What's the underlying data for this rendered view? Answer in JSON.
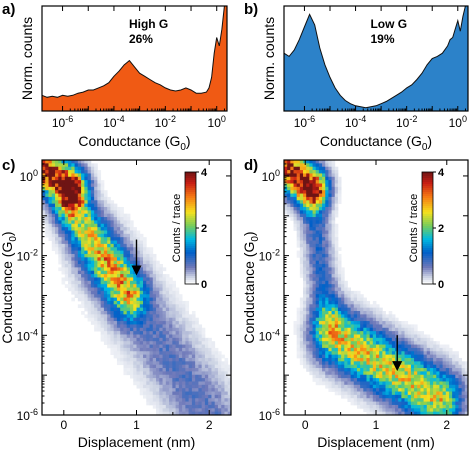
{
  "chart_data": [
    {
      "panel_label": "a)",
      "type": "area",
      "annotation_title": "High G",
      "annotation_value": "26%",
      "ylabel": "Norm. counts",
      "xlabel_main": "Conductance (G",
      "xlabel_sub": "0",
      "xlabel_end": ")",
      "xscale": "log",
      "xlim": [
        -6.8,
        0.4
      ],
      "ylim": [
        0,
        1
      ],
      "x_tick_labels": [
        {
          "base": "10",
          "exp": "-6",
          "value": -6
        },
        {
          "base": "10",
          "exp": "-4",
          "value": -4
        },
        {
          "base": "10",
          "exp": "-2",
          "value": -2
        },
        {
          "base": "10",
          "exp": "0",
          "value": 0
        }
      ],
      "fill_color": "#f05a14",
      "x": [
        -6.8,
        -6.6,
        -6.4,
        -6.2,
        -6.0,
        -5.8,
        -5.6,
        -5.4,
        -5.2,
        -5.0,
        -4.8,
        -4.6,
        -4.4,
        -4.2,
        -4.0,
        -3.8,
        -3.6,
        -3.4,
        -3.2,
        -3.0,
        -2.8,
        -2.6,
        -2.4,
        -2.2,
        -2.0,
        -1.8,
        -1.6,
        -1.4,
        -1.2,
        -1.0,
        -0.8,
        -0.6,
        -0.4,
        -0.3,
        -0.2,
        -0.1,
        0.0,
        0.1,
        0.2,
        0.3,
        0.4
      ],
      "y": [
        0.15,
        0.13,
        0.14,
        0.13,
        0.15,
        0.14,
        0.15,
        0.17,
        0.18,
        0.2,
        0.2,
        0.22,
        0.24,
        0.27,
        0.33,
        0.38,
        0.44,
        0.48,
        0.42,
        0.36,
        0.33,
        0.3,
        0.27,
        0.25,
        0.22,
        0.2,
        0.19,
        0.2,
        0.22,
        0.2,
        0.17,
        0.17,
        0.18,
        0.22,
        0.32,
        0.55,
        0.7,
        0.62,
        0.78,
        1.0,
        1.0
      ]
    },
    {
      "panel_label": "b)",
      "type": "area",
      "annotation_title": "Low G",
      "annotation_value": "19%",
      "ylabel": "Norm. counts",
      "xlabel_main": "Conductance (G",
      "xlabel_sub": "0",
      "xlabel_end": ")",
      "xscale": "log",
      "xlim": [
        -6.8,
        0.4
      ],
      "ylim": [
        0,
        1
      ],
      "x_tick_labels": [
        {
          "base": "10",
          "exp": "-6",
          "value": -6
        },
        {
          "base": "10",
          "exp": "-4",
          "value": -4
        },
        {
          "base": "10",
          "exp": "-2",
          "value": -2
        },
        {
          "base": "10",
          "exp": "0",
          "value": 0
        }
      ],
      "fill_color": "#2c82c9",
      "x": [
        -6.8,
        -6.6,
        -6.4,
        -6.2,
        -6.0,
        -5.8,
        -5.6,
        -5.4,
        -5.2,
        -5.0,
        -4.8,
        -4.6,
        -4.4,
        -4.2,
        -4.0,
        -3.8,
        -3.6,
        -3.4,
        -3.2,
        -3.0,
        -2.8,
        -2.6,
        -2.4,
        -2.2,
        -2.0,
        -1.8,
        -1.6,
        -1.4,
        -1.2,
        -1.0,
        -0.8,
        -0.6,
        -0.4,
        -0.3,
        -0.2,
        -0.1,
        0.0,
        0.1,
        0.2,
        0.3,
        0.4
      ],
      "y": [
        0.55,
        0.52,
        0.58,
        0.68,
        0.8,
        0.92,
        0.82,
        0.6,
        0.44,
        0.32,
        0.22,
        0.15,
        0.1,
        0.07,
        0.05,
        0.04,
        0.03,
        0.04,
        0.05,
        0.07,
        0.09,
        0.12,
        0.15,
        0.18,
        0.22,
        0.25,
        0.3,
        0.36,
        0.44,
        0.5,
        0.52,
        0.55,
        0.62,
        0.68,
        0.7,
        0.78,
        0.86,
        0.76,
        0.9,
        1.0,
        1.0
      ]
    },
    {
      "panel_label": "c)",
      "type": "heatmap",
      "ylabel_main": "Conductance (G",
      "ylabel_sub": "0",
      "ylabel_end": ")",
      "xlabel": "Displacement (nm)",
      "xlim": [
        -0.3,
        2.3
      ],
      "ylim_log": [
        -6,
        0.4
      ],
      "x_ticks": [
        0,
        1,
        2
      ],
      "x_tick_labels": [
        "0",
        "1",
        "2"
      ],
      "y_tick_labels": [
        {
          "base": "10",
          "exp": "0",
          "value": 0
        },
        {
          "base": "10",
          "exp": "-2",
          "value": -2
        },
        {
          "base": "10",
          "exp": "-4",
          "value": -4
        },
        {
          "base": "10",
          "exp": "-6",
          "value": -6
        }
      ],
      "colorbar_label": "Counts / trace",
      "colorbar_ticks": [
        "4",
        "2",
        "0"
      ],
      "colorbar_range": [
        0,
        4
      ],
      "arrow_at": {
        "x": 1.0,
        "y_log": -2.5
      },
      "bands": [
        {
          "x0": -0.3,
          "y0": 0.2,
          "x1": 0.1,
          "y1": -0.3,
          "width": 0.5,
          "peak": 4.0
        },
        {
          "x0": 0.1,
          "y0": -0.8,
          "x1": 0.9,
          "y1": -3.0,
          "width": 0.55,
          "peak": 2.2
        },
        {
          "x0": 0.5,
          "y0": -2.0,
          "x1": 2.0,
          "y1": -6.0,
          "width": 0.9,
          "peak": 0.7
        }
      ]
    },
    {
      "panel_label": "d)",
      "type": "heatmap",
      "ylabel_main": "Conductance (G",
      "ylabel_sub": "0",
      "ylabel_end": ")",
      "xlabel": "Displacement (nm)",
      "xlim": [
        -0.3,
        2.3
      ],
      "ylim_log": [
        -6,
        0.4
      ],
      "x_ticks": [
        0,
        1,
        2
      ],
      "x_tick_labels": [
        "0",
        "1",
        "2"
      ],
      "y_tick_labels": [
        {
          "base": "10",
          "exp": "0",
          "value": 0
        },
        {
          "base": "10",
          "exp": "-2",
          "value": -2
        },
        {
          "base": "10",
          "exp": "-4",
          "value": -4
        },
        {
          "base": "10",
          "exp": "-6",
          "value": -6
        }
      ],
      "colorbar_label": "Counts / trace",
      "colorbar_ticks": [
        "4",
        "2",
        "0"
      ],
      "colorbar_range": [
        0,
        4
      ],
      "arrow_at": {
        "x": 1.3,
        "y_log": -4.9
      },
      "bands": [
        {
          "x0": -0.3,
          "y0": 0.2,
          "x1": 0.1,
          "y1": -0.3,
          "width": 0.5,
          "peak": 4.0
        },
        {
          "x0": 0.1,
          "y0": -0.6,
          "x1": 0.3,
          "y1": -3.5,
          "width": 0.45,
          "peak": 0.9
        },
        {
          "x0": 0.4,
          "y0": -4.0,
          "x1": 1.9,
          "y1": -5.6,
          "width": 0.7,
          "peak": 2.6
        }
      ]
    }
  ]
}
